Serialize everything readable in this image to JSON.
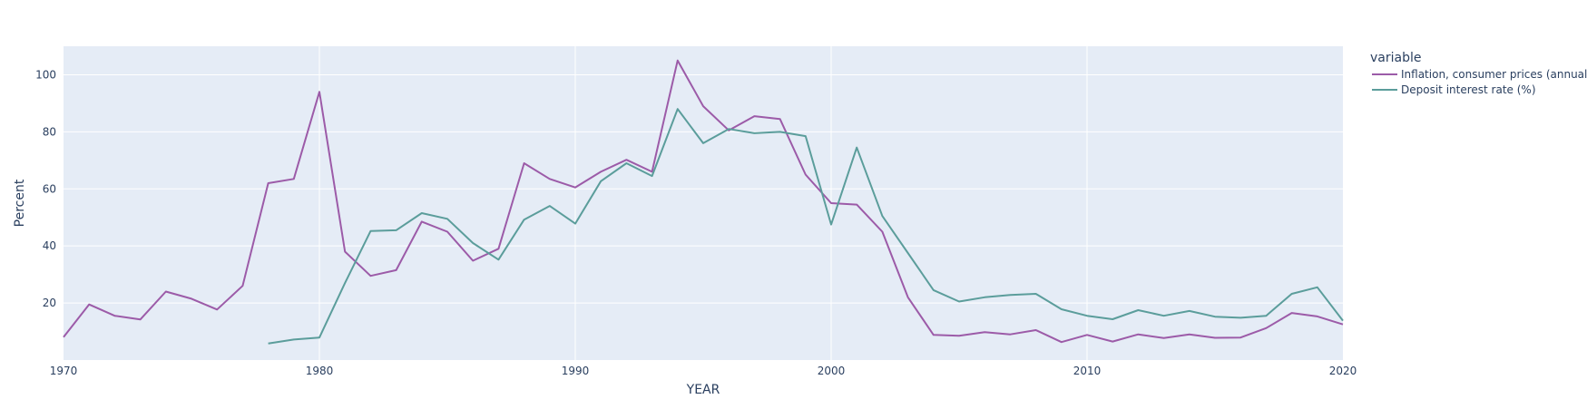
{
  "chart_data": {
    "type": "line",
    "xlabel": "YEAR",
    "ylabel": "Percent",
    "xlim": [
      1970,
      2020
    ],
    "ylim": [
      0,
      110
    ],
    "x_ticks": [
      1970,
      1980,
      1990,
      2000,
      2010,
      2020
    ],
    "y_ticks": [
      20,
      40,
      60,
      80,
      100
    ],
    "grid": true,
    "plot_background": "#e5ecf6",
    "legend": {
      "title": "variable",
      "placement": "right"
    },
    "series": [
      {
        "name": "Inflation, consumer prices (annual %)",
        "color": "#9c5ba8",
        "x": [
          1970,
          1971,
          1972,
          1973,
          1974,
          1975,
          1976,
          1977,
          1978,
          1979,
          1980,
          1981,
          1982,
          1983,
          1984,
          1985,
          1986,
          1987,
          1988,
          1989,
          1990,
          1991,
          1992,
          1993,
          1994,
          1995,
          1996,
          1997,
          1998,
          1999,
          2000,
          2001,
          2002,
          2003,
          2004,
          2005,
          2006,
          2007,
          2008,
          2009,
          2010,
          2011,
          2012,
          2013,
          2014,
          2015,
          2016,
          2017,
          2018,
          2019,
          2020
        ],
        "y": [
          8,
          19.5,
          15.5,
          14.2,
          24,
          21.5,
          17.7,
          26,
          62,
          63.5,
          94,
          38,
          29.5,
          31.5,
          48.5,
          45,
          34.8,
          39,
          69,
          63.5,
          60.5,
          66,
          70.2,
          66,
          105,
          89,
          80.5,
          85.5,
          84.5,
          65,
          55,
          54.5,
          45,
          22,
          8.8,
          8.5,
          9.8,
          9,
          10.5,
          6.3,
          8.8,
          6.5,
          9,
          7.7,
          9,
          7.8,
          7.9,
          11.2,
          16.5,
          15.3,
          12.5
        ]
      },
      {
        "name": "Deposit interest rate (%)",
        "color": "#5b9d9b",
        "x": [
          1978,
          1979,
          1980,
          1981,
          1982,
          1983,
          1984,
          1985,
          1986,
          1987,
          1988,
          1989,
          1990,
          1991,
          1992,
          1993,
          1994,
          1995,
          1996,
          1997,
          1998,
          1999,
          2000,
          2001,
          2002,
          2003,
          2004,
          2005,
          2006,
          2007,
          2008,
          2009,
          2010,
          2011,
          2012,
          2013,
          2014,
          2015,
          2016,
          2017,
          2018,
          2019,
          2020
        ],
        "y": [
          5.8,
          7.2,
          7.9,
          27,
          45.2,
          45.5,
          51.5,
          49.5,
          41,
          35.2,
          49.2,
          54,
          47.8,
          62.7,
          69,
          64.5,
          88,
          76,
          81,
          79.5,
          80,
          78.5,
          47.5,
          74.5,
          50.5,
          37.5,
          24.5,
          20.5,
          22,
          22.8,
          23.2,
          17.8,
          15.5,
          14.3,
          17.5,
          15.5,
          17.2,
          15.2,
          14.8,
          15.5,
          23.2,
          25.5,
          13.8
        ]
      }
    ]
  }
}
